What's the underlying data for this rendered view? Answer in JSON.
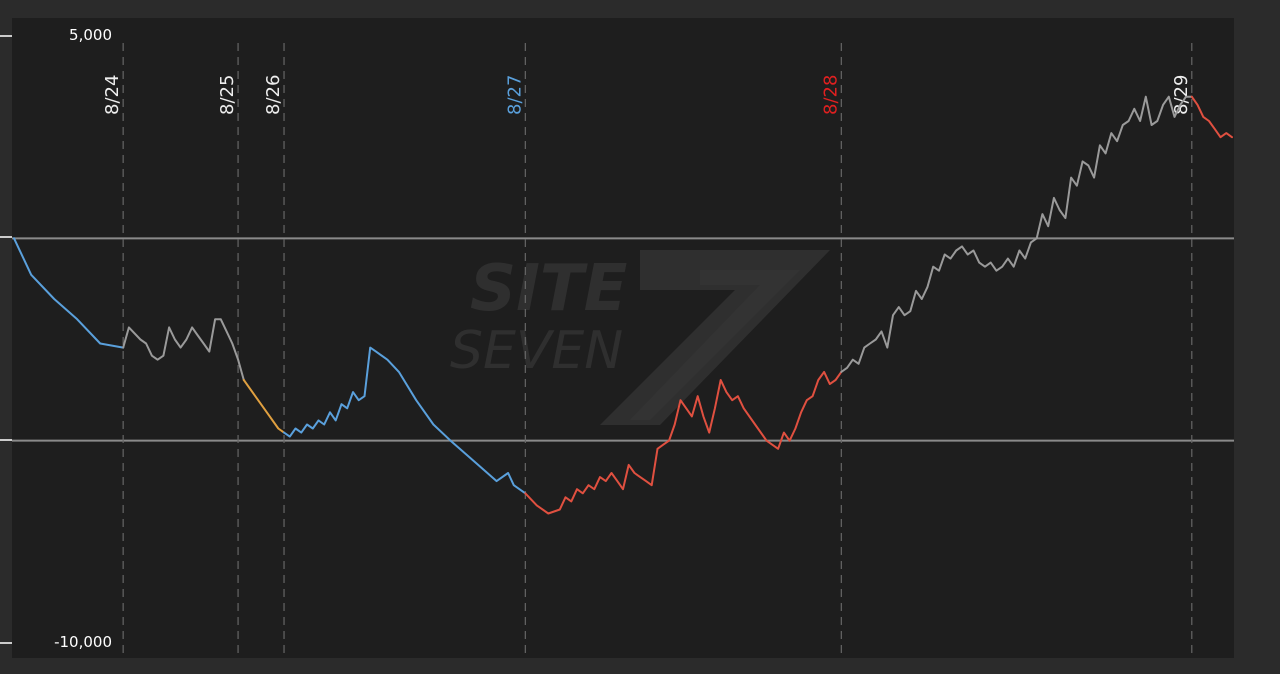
{
  "chart_data": {
    "type": "line",
    "title": "",
    "xlabel": "",
    "ylabel": "",
    "ylim": [
      -10000,
      5000
    ],
    "y_tick_labels": [
      {
        "value": 5000,
        "label": "5,000"
      },
      {
        "value": -10000,
        "label": "-10,000"
      }
    ],
    "reference_lines": [
      0,
      -5000
    ],
    "grid": false,
    "watermark": {
      "line1": "SITE",
      "line2": "SEVEN"
    },
    "colors": {
      "background": "#1e1e1e",
      "frame": "#2b2b2b",
      "reference_line": "#8a8a8a",
      "divider": "#666666",
      "gray": "#9a9a9a",
      "blue": "#5aa0dc",
      "orange": "#e0a040",
      "red": "#e05040",
      "label_white": "#eeeeee",
      "label_blue": "#5aa0dc",
      "label_red": "#e02020"
    },
    "x_unit": "trade number",
    "x_range": [
      0,
      212
    ],
    "day_dividers": [
      {
        "x": 19,
        "label": "8/24",
        "color": "label_white"
      },
      {
        "x": 39,
        "label": "8/25",
        "color": "label_white"
      },
      {
        "x": 47,
        "label": "8/26",
        "color": "label_white"
      },
      {
        "x": 89,
        "label": "8/27",
        "color": "label_blue"
      },
      {
        "x": 144,
        "label": "8/28",
        "color": "label_red"
      },
      {
        "x": 205,
        "label": "8/29",
        "color": "label_white"
      }
    ],
    "series": [
      {
        "color": "blue",
        "points": [
          [
            0,
            0
          ],
          [
            3,
            -900
          ],
          [
            7,
            -1500
          ],
          [
            11,
            -2000
          ],
          [
            15,
            -2600
          ],
          [
            19,
            -2700
          ]
        ]
      },
      {
        "color": "gray",
        "points": [
          [
            19,
            -2700
          ],
          [
            20,
            -2200
          ],
          [
            22,
            -2500
          ],
          [
            23,
            -2600
          ],
          [
            24,
            -2900
          ],
          [
            25,
            -3000
          ],
          [
            26,
            -2900
          ],
          [
            27,
            -2200
          ],
          [
            28,
            -2500
          ],
          [
            29,
            -2700
          ],
          [
            30,
            -2500
          ],
          [
            31,
            -2200
          ],
          [
            32,
            -2400
          ],
          [
            33,
            -2600
          ],
          [
            34,
            -2800
          ],
          [
            35,
            -2000
          ],
          [
            36,
            -2000
          ],
          [
            37,
            -2300
          ],
          [
            38,
            -2600
          ],
          [
            39,
            -3000
          ],
          [
            40,
            -3500
          ]
        ]
      },
      {
        "color": "orange",
        "points": [
          [
            40,
            -3500
          ],
          [
            42,
            -3900
          ],
          [
            44,
            -4300
          ],
          [
            46,
            -4700
          ],
          [
            47,
            -4800
          ]
        ]
      },
      {
        "color": "blue",
        "points": [
          [
            47,
            -4800
          ],
          [
            48,
            -4900
          ],
          [
            49,
            -4700
          ],
          [
            50,
            -4800
          ],
          [
            51,
            -4600
          ],
          [
            52,
            -4700
          ],
          [
            53,
            -4500
          ],
          [
            54,
            -4600
          ],
          [
            55,
            -4300
          ],
          [
            56,
            -4500
          ],
          [
            57,
            -4100
          ],
          [
            58,
            -4200
          ],
          [
            59,
            -3800
          ],
          [
            60,
            -4000
          ],
          [
            61,
            -3900
          ],
          [
            62,
            -2700
          ],
          [
            63,
            -2800
          ],
          [
            65,
            -3000
          ],
          [
            67,
            -3300
          ],
          [
            70,
            -4000
          ],
          [
            73,
            -4600
          ],
          [
            76,
            -5000
          ],
          [
            80,
            -5500
          ],
          [
            84,
            -6000
          ],
          [
            86,
            -5800
          ],
          [
            87,
            -6100
          ],
          [
            89,
            -6300
          ]
        ]
      },
      {
        "color": "red",
        "points": [
          [
            89,
            -6300
          ],
          [
            91,
            -6600
          ],
          [
            93,
            -6800
          ],
          [
            95,
            -6700
          ],
          [
            96,
            -6400
          ],
          [
            97,
            -6500
          ],
          [
            98,
            -6200
          ],
          [
            99,
            -6300
          ],
          [
            100,
            -6100
          ],
          [
            101,
            -6200
          ],
          [
            102,
            -5900
          ],
          [
            103,
            -6000
          ],
          [
            104,
            -5800
          ],
          [
            105,
            -6000
          ],
          [
            106,
            -6200
          ],
          [
            107,
            -5600
          ],
          [
            108,
            -5800
          ],
          [
            109,
            -5900
          ],
          [
            110,
            -6000
          ],
          [
            111,
            -6100
          ],
          [
            112,
            -5200
          ],
          [
            113,
            -5100
          ],
          [
            114,
            -5000
          ],
          [
            115,
            -4600
          ],
          [
            116,
            -4000
          ],
          [
            117,
            -4200
          ],
          [
            118,
            -4400
          ],
          [
            119,
            -3900
          ],
          [
            120,
            -4400
          ],
          [
            121,
            -4800
          ],
          [
            122,
            -4200
          ],
          [
            123,
            -3500
          ],
          [
            124,
            -3800
          ],
          [
            125,
            -4000
          ],
          [
            126,
            -3900
          ],
          [
            127,
            -4200
          ],
          [
            129,
            -4600
          ],
          [
            131,
            -5000
          ],
          [
            133,
            -5200
          ],
          [
            134,
            -4800
          ],
          [
            135,
            -5000
          ],
          [
            136,
            -4700
          ],
          [
            137,
            -4300
          ],
          [
            138,
            -4000
          ],
          [
            139,
            -3900
          ],
          [
            140,
            -3500
          ],
          [
            141,
            -3300
          ],
          [
            142,
            -3600
          ],
          [
            143,
            -3500
          ],
          [
            144,
            -3300
          ]
        ]
      },
      {
        "color": "gray",
        "points": [
          [
            144,
            -3300
          ],
          [
            145,
            -3200
          ],
          [
            146,
            -3000
          ],
          [
            147,
            -3100
          ],
          [
            148,
            -2700
          ],
          [
            149,
            -2600
          ],
          [
            150,
            -2500
          ],
          [
            151,
            -2300
          ],
          [
            152,
            -2700
          ],
          [
            153,
            -1900
          ],
          [
            154,
            -1700
          ],
          [
            155,
            -1900
          ],
          [
            156,
            -1800
          ],
          [
            157,
            -1300
          ],
          [
            158,
            -1500
          ],
          [
            159,
            -1200
          ],
          [
            160,
            -700
          ],
          [
            161,
            -800
          ],
          [
            162,
            -400
          ],
          [
            163,
            -500
          ],
          [
            164,
            -300
          ],
          [
            165,
            -200
          ],
          [
            166,
            -400
          ],
          [
            167,
            -300
          ],
          [
            168,
            -600
          ],
          [
            169,
            -700
          ],
          [
            170,
            -600
          ],
          [
            171,
            -800
          ],
          [
            172,
            -700
          ],
          [
            173,
            -500
          ],
          [
            174,
            -700
          ],
          [
            175,
            -300
          ],
          [
            176,
            -500
          ],
          [
            177,
            -100
          ],
          [
            178,
            0
          ],
          [
            179,
            600
          ],
          [
            180,
            300
          ],
          [
            181,
            1000
          ],
          [
            182,
            700
          ],
          [
            183,
            500
          ],
          [
            184,
            1500
          ],
          [
            185,
            1300
          ],
          [
            186,
            1900
          ],
          [
            187,
            1800
          ],
          [
            188,
            1500
          ],
          [
            189,
            2300
          ],
          [
            190,
            2100
          ],
          [
            191,
            2600
          ],
          [
            192,
            2400
          ],
          [
            193,
            2800
          ],
          [
            194,
            2900
          ],
          [
            195,
            3200
          ],
          [
            196,
            2900
          ],
          [
            197,
            3500
          ],
          [
            198,
            2800
          ],
          [
            199,
            2900
          ],
          [
            200,
            3300
          ],
          [
            201,
            3500
          ],
          [
            202,
            3000
          ],
          [
            203,
            3300
          ],
          [
            204,
            3500
          ],
          [
            205,
            3500
          ]
        ]
      },
      {
        "color": "red",
        "points": [
          [
            205,
            3500
          ],
          [
            206,
            3300
          ],
          [
            207,
            3000
          ],
          [
            208,
            2900
          ],
          [
            209,
            2700
          ],
          [
            210,
            2500
          ],
          [
            211,
            2600
          ],
          [
            212,
            2500
          ]
        ]
      }
    ]
  }
}
